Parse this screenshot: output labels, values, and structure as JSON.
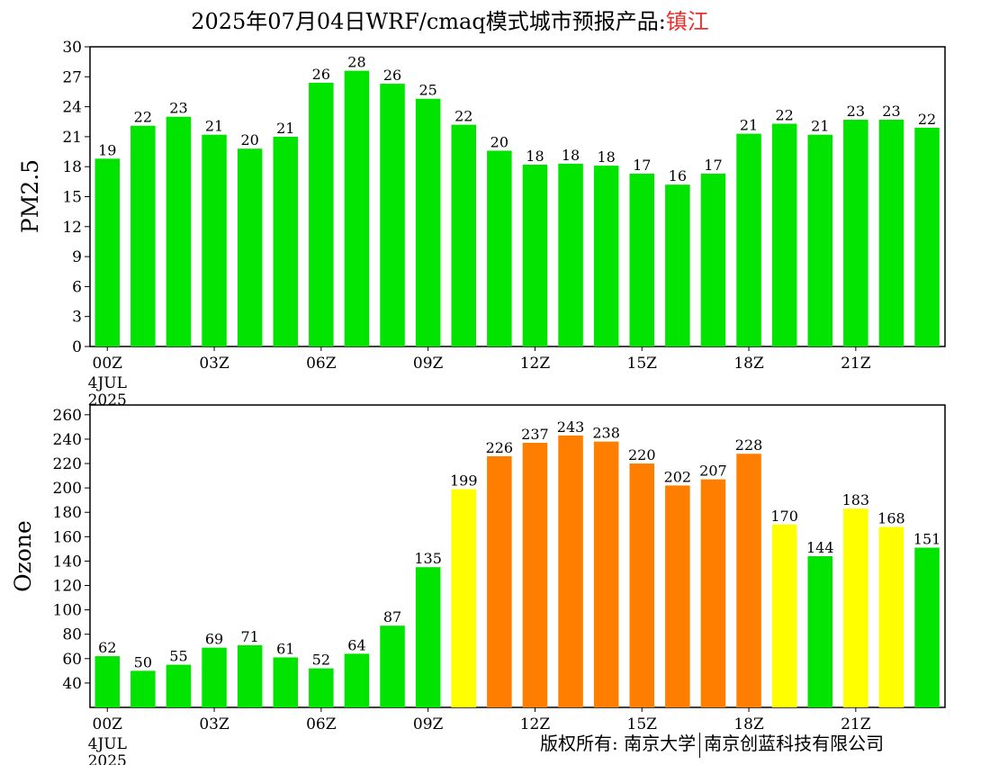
{
  "title": {
    "main": "2025年07月04日WRF/cmaq模式城市预报产品:",
    "city": "镇江"
  },
  "copyright": {
    "owner_label": "版权所有:",
    "org1": "南京大学",
    "org2": "南京创蓝科技有限公司"
  },
  "colors": {
    "green": "#00e400",
    "yellow": "#ffff00",
    "orange": "#ff7e00",
    "title_city": "#e8302f"
  },
  "chart_data": [
    {
      "type": "bar",
      "ylabel": "PM2.5",
      "ylim": [
        0,
        30
      ],
      "yticks": [
        0,
        3,
        6,
        9,
        12,
        15,
        18,
        21,
        24,
        27,
        30
      ],
      "xtick_labels": [
        "00Z",
        "03Z",
        "06Z",
        "09Z",
        "12Z",
        "15Z",
        "18Z",
        "21Z"
      ],
      "xtick_hours": [
        0,
        3,
        6,
        9,
        12,
        15,
        18,
        21
      ],
      "date_labels": [
        "4JUL",
        "2025"
      ],
      "hours": [
        0,
        1,
        2,
        3,
        4,
        5,
        6,
        7,
        8,
        9,
        10,
        11,
        12,
        13,
        14,
        15,
        16,
        17,
        18,
        19,
        20,
        21,
        22,
        23
      ],
      "values": [
        18.8,
        22.1,
        23.0,
        21.2,
        19.8,
        21.0,
        26.4,
        27.6,
        26.3,
        24.8,
        22.2,
        19.6,
        18.2,
        18.3,
        18.1,
        17.3,
        16.2,
        17.3,
        21.3,
        22.3,
        21.2,
        22.7,
        22.7,
        21.9
      ],
      "data_labels": [
        "19",
        "22",
        "23",
        "21",
        "20",
        "21",
        "26",
        "28",
        "26",
        "25",
        "22",
        "20",
        "18",
        "18",
        "18",
        "17",
        "16",
        "17",
        "21",
        "22",
        "21",
        "23",
        "23",
        "22"
      ],
      "bar_colors": [
        "green",
        "green",
        "green",
        "green",
        "green",
        "green",
        "green",
        "green",
        "green",
        "green",
        "green",
        "green",
        "green",
        "green",
        "green",
        "green",
        "green",
        "green",
        "green",
        "green",
        "green",
        "green",
        "green",
        "green"
      ]
    },
    {
      "type": "bar",
      "ylabel": "Ozone",
      "ylim": [
        20,
        268
      ],
      "yticks": [
        40,
        60,
        80,
        100,
        120,
        140,
        160,
        180,
        200,
        220,
        240,
        260
      ],
      "xtick_labels": [
        "00Z",
        "03Z",
        "06Z",
        "09Z",
        "12Z",
        "15Z",
        "18Z",
        "21Z"
      ],
      "xtick_hours": [
        0,
        3,
        6,
        9,
        12,
        15,
        18,
        21
      ],
      "date_labels": [
        "4JUL",
        "2025"
      ],
      "hours": [
        0,
        1,
        2,
        3,
        4,
        5,
        6,
        7,
        8,
        9,
        10,
        11,
        12,
        13,
        14,
        15,
        16,
        17,
        18,
        19,
        20,
        21,
        22,
        23
      ],
      "values": [
        62,
        50,
        55,
        69,
        71,
        61,
        52,
        64,
        87,
        135,
        199,
        226,
        237,
        243,
        238,
        220,
        202,
        207,
        228,
        170,
        144,
        183,
        168,
        151
      ],
      "data_labels": [
        "62",
        "50",
        "55",
        "69",
        "71",
        "61",
        "52",
        "64",
        "87",
        "135",
        "199",
        "226",
        "237",
        "243",
        "238",
        "220",
        "202",
        "207",
        "228",
        "170",
        "144",
        "183",
        "168",
        "151"
      ],
      "bar_colors": [
        "green",
        "green",
        "green",
        "green",
        "green",
        "green",
        "green",
        "green",
        "green",
        "green",
        "yellow",
        "orange",
        "orange",
        "orange",
        "orange",
        "orange",
        "orange",
        "orange",
        "orange",
        "yellow",
        "green",
        "yellow",
        "yellow",
        "green"
      ]
    }
  ]
}
